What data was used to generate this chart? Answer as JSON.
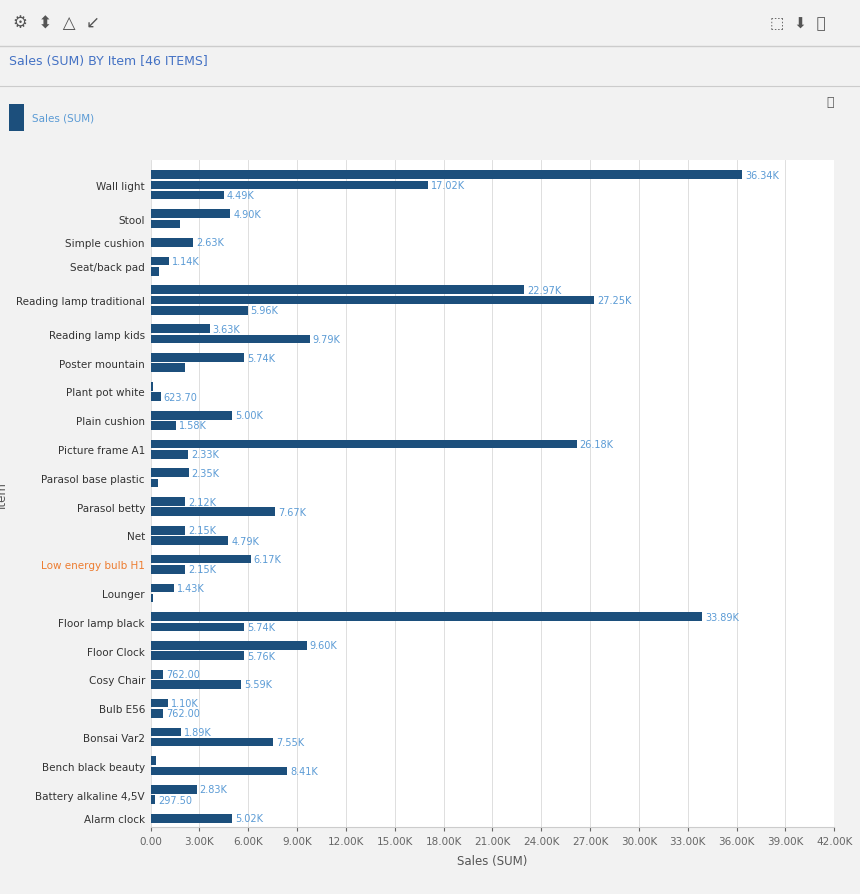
{
  "title": "Sales (SUM) BY Item [46 ITEMS]",
  "xlabel": "Sales (SUM)",
  "ylabel": "Item",
  "legend_label": "Sales (SUM)",
  "bar_color": "#1c4f7c",
  "label_color": "#5b9bd5",
  "title_color": "#4472c4",
  "background_color": "#f2f2f2",
  "plot_bg_color": "#ffffff",
  "xlim": [
    0,
    42000
  ],
  "xticks": [
    0,
    3000,
    6000,
    9000,
    12000,
    15000,
    18000,
    21000,
    24000,
    27000,
    30000,
    33000,
    36000,
    39000,
    42000
  ],
  "xtick_labels": [
    "0.00",
    "3.00K",
    "6.00K",
    "9.00K",
    "12.00K",
    "15.00K",
    "18.00K",
    "21.00K",
    "24.00K",
    "27.00K",
    "30.00K",
    "33.00K",
    "36.00K",
    "39.00K",
    "42.00K"
  ],
  "items": [
    {
      "label": "Wall light",
      "values": [
        4490,
        17020,
        36340
      ],
      "vlabels": [
        "4.49K",
        "17.02K",
        "36.34K"
      ]
    },
    {
      "label": "Stool",
      "values": [
        1800,
        4900
      ],
      "vlabels": [
        "",
        "4.90K"
      ]
    },
    {
      "label": "Simple cushion",
      "values": [
        2630
      ],
      "vlabels": [
        "2.63K"
      ]
    },
    {
      "label": "Seat/back pad",
      "values": [
        500,
        1140
      ],
      "vlabels": [
        "",
        "1.14K"
      ]
    },
    {
      "label": "Reading lamp traditional",
      "values": [
        5960,
        27250,
        22970
      ],
      "vlabels": [
        "5.96K",
        "27.25K",
        "22.97K"
      ]
    },
    {
      "label": "Reading lamp kids",
      "values": [
        9790,
        3630
      ],
      "vlabels": [
        "9.79K",
        "3.63K"
      ]
    },
    {
      "label": "Poster mountain",
      "values": [
        2100,
        5740
      ],
      "vlabels": [
        "",
        "5.74K"
      ]
    },
    {
      "label": "Plant pot white",
      "values": [
        623,
        160
      ],
      "vlabels": [
        "623.70",
        ""
      ]
    },
    {
      "label": "Plain cushion",
      "values": [
        1580,
        5000
      ],
      "vlabels": [
        "1.58K",
        "5.00K"
      ]
    },
    {
      "label": "Picture frame A1",
      "values": [
        2330,
        26180
      ],
      "vlabels": [
        "2.33K",
        "26.18K"
      ]
    },
    {
      "label": "Parasol base plastic",
      "values": [
        480,
        2350
      ],
      "vlabels": [
        "",
        "2.35K"
      ]
    },
    {
      "label": "Parasol betty",
      "values": [
        7670,
        2120
      ],
      "vlabels": [
        "7.67K",
        "2.12K"
      ]
    },
    {
      "label": "Net",
      "values": [
        4790,
        2150
      ],
      "vlabels": [
        "4.79K",
        "2.15K"
      ]
    },
    {
      "label": "Low energy bulb H1",
      "values": [
        2150,
        6170
      ],
      "vlabels": [
        "2.15K",
        "6.17K"
      ]
    },
    {
      "label": "Lounger",
      "values": [
        150,
        1430
      ],
      "vlabels": [
        "",
        "1.43K"
      ]
    },
    {
      "label": "Floor lamp black",
      "values": [
        5740,
        33890
      ],
      "vlabels": [
        "5.74K",
        "33.89K"
      ]
    },
    {
      "label": "Floor Clock",
      "values": [
        5760,
        9600
      ],
      "vlabels": [
        "5.76K",
        "9.60K"
      ]
    },
    {
      "label": "Cosy Chair",
      "values": [
        5590,
        762
      ],
      "vlabels": [
        "5.59K",
        "762.00"
      ]
    },
    {
      "label": "Bulb E56",
      "values": [
        762,
        1100
      ],
      "vlabels": [
        "762.00",
        "1.10K"
      ]
    },
    {
      "label": "Bonsai Var2",
      "values": [
        7550,
        1890
      ],
      "vlabels": [
        "7.55K",
        "1.89K"
      ]
    },
    {
      "label": "Bench black beauty",
      "values": [
        8410,
        350
      ],
      "vlabels": [
        "8.41K",
        ""
      ]
    },
    {
      "label": "Battery alkaline 4,5V",
      "values": [
        297,
        2830
      ],
      "vlabels": [
        "297.50",
        "2.83K"
      ]
    },
    {
      "label": "Alarm clock",
      "values": [
        5020
      ],
      "vlabels": [
        "5.02K"
      ]
    }
  ],
  "low_energy_label_color": "#ed7d31",
  "font_size_labels": 7.5,
  "font_size_title": 9,
  "font_size_axis": 7.5,
  "font_size_value": 7,
  "grid_color": "#d9d9d9"
}
